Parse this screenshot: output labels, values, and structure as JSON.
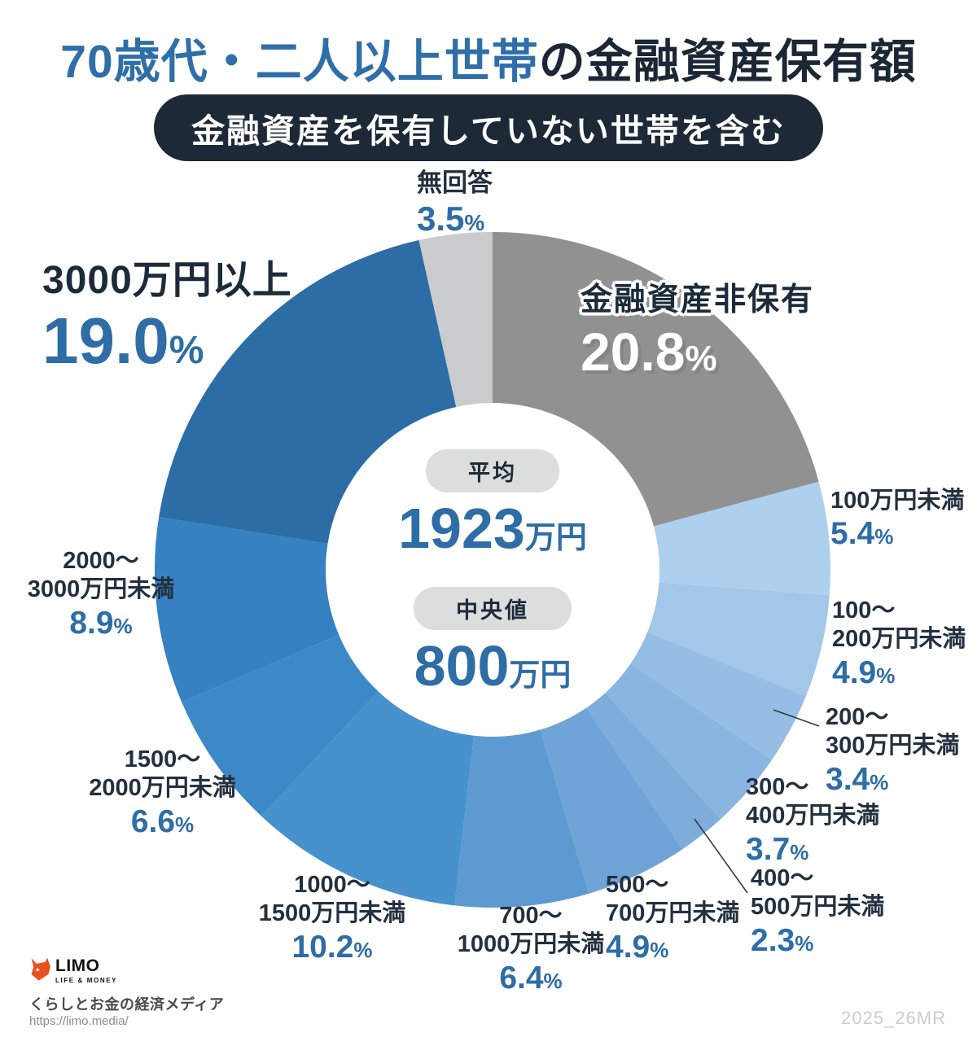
{
  "header": {
    "title_highlight": "70歳代・二人以上世帯",
    "title_rest": "の金融資産保有額",
    "subtitle_badge": "金融資産を保有していない世帯を含む"
  },
  "ui": {
    "percent_sign": "%"
  },
  "center": {
    "mean_label": "平均",
    "mean_value": "1923",
    "mean_unit": "万円",
    "median_label": "中央値",
    "median_value": "800",
    "median_unit": "万円"
  },
  "chart_data": {
    "type": "pie",
    "donut": true,
    "title": "70歳代・二人以上世帯の金融資産保有額（金融資産を保有していない世帯を含む）",
    "start_angle_deg": 0,
    "direction": "clockwise",
    "mean": "1923万円",
    "median": "800万円",
    "segments": [
      {
        "label": "金融資産非保有",
        "value": 20.8,
        "display_value": "20.8",
        "lines": [
          "金融資産非保有"
        ],
        "color": "#919191"
      },
      {
        "label": "100万円未満",
        "value": 5.4,
        "display_value": "5.4",
        "lines": [
          "100万円未満"
        ],
        "color": "#aed0ef"
      },
      {
        "label": "100〜200万円未満",
        "value": 4.9,
        "display_value": "4.9",
        "lines": [
          "100〜",
          "200万円未満"
        ],
        "color": "#a2c7e9"
      },
      {
        "label": "200〜300万円未満",
        "value": 3.4,
        "display_value": "3.4",
        "lines": [
          "200〜",
          "300万円未満"
        ],
        "color": "#96bee5"
      },
      {
        "label": "300〜400万円未満",
        "value": 3.7,
        "display_value": "3.7",
        "lines": [
          "300〜",
          "400万円未満"
        ],
        "color": "#8ab5e0"
      },
      {
        "label": "400〜500万円未満",
        "value": 2.3,
        "display_value": "2.3",
        "lines": [
          "400〜",
          "500万円未満"
        ],
        "color": "#7eaddc"
      },
      {
        "label": "500〜700万円未満",
        "value": 4.9,
        "display_value": "4.9",
        "lines": [
          "500〜",
          "700万円未満"
        ],
        "color": "#70a4d7"
      },
      {
        "label": "700〜1000万円未満",
        "value": 6.4,
        "display_value": "6.4",
        "lines": [
          "700〜",
          "1000万円未満"
        ],
        "color": "#5d9ad2"
      },
      {
        "label": "1000〜1500万円未満",
        "value": 10.2,
        "display_value": "10.2",
        "lines": [
          "1000〜",
          "1500万円未満"
        ],
        "color": "#4791cd"
      },
      {
        "label": "1500〜2000万円未満",
        "value": 6.6,
        "display_value": "6.6",
        "lines": [
          "1500〜",
          "2000万円未満"
        ],
        "color": "#3d89c7"
      },
      {
        "label": "2000〜3000万円未満",
        "value": 8.9,
        "display_value": "8.9",
        "lines": [
          "2000〜",
          "3000万円未満"
        ],
        "color": "#3581c1"
      },
      {
        "label": "3000万円以上",
        "value": 19.0,
        "display_value": "19.0",
        "lines": [
          "3000万円以上"
        ],
        "color": "#2d6da5"
      },
      {
        "label": "無回答",
        "value": 3.5,
        "display_value": "3.5",
        "lines": [
          "無回答"
        ],
        "color": "#c9cbcd"
      }
    ]
  },
  "footer": {
    "logo_text": "LIMO",
    "logo_sub": "LIFE & MONEY",
    "tagline": "くらしとお金の経済メディア",
    "url": "https://limo.media/",
    "watermark": "2025_26MR"
  },
  "colors": {
    "title_highlight": "#2f6fa8",
    "title_dark": "#1b2735",
    "badge_bg": "#1d2937",
    "pct_blue": "#2e6da6",
    "label_dark": "#22303f",
    "logo_orange": "#e8511d"
  }
}
